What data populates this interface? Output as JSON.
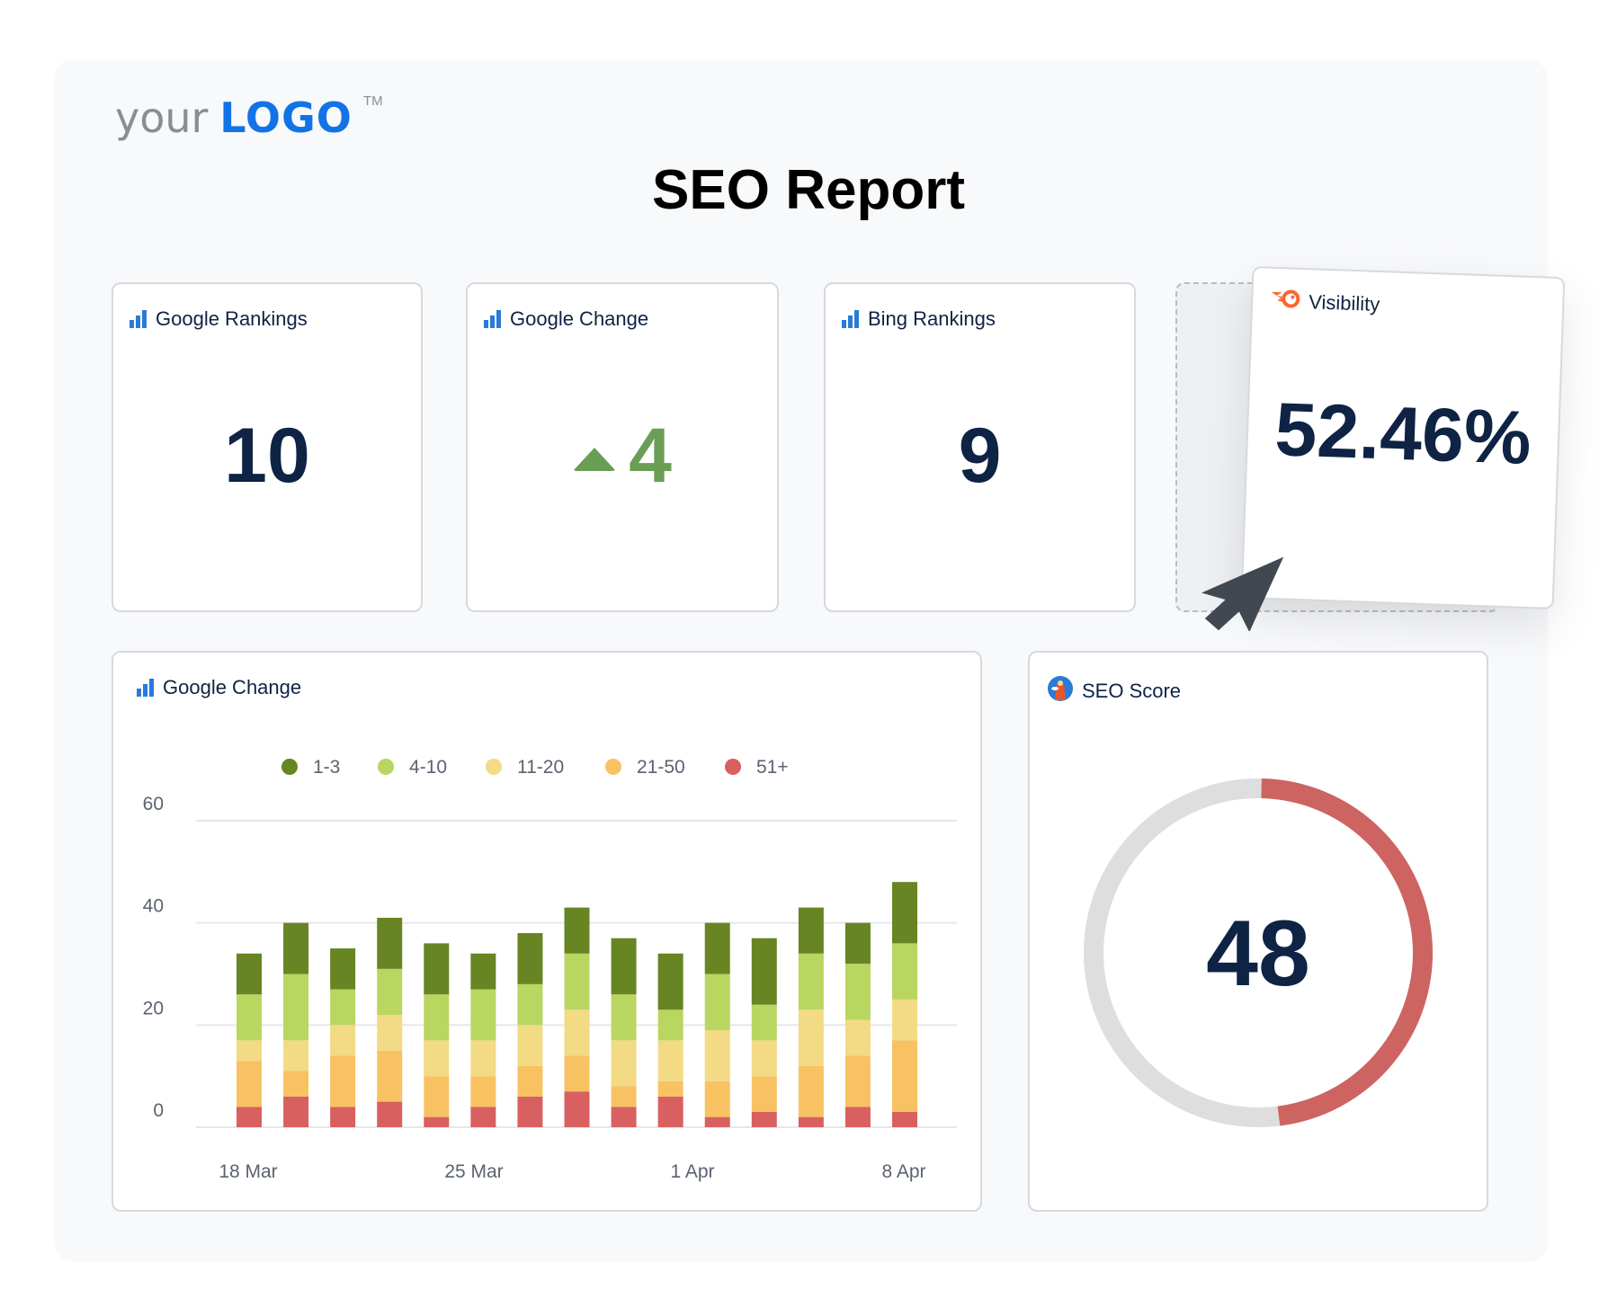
{
  "logo": {
    "prefix": "your",
    "mark": "LOGO",
    "tm": "TM"
  },
  "title": "SEO Report",
  "cards": [
    {
      "label": "Google Rankings",
      "value": "10",
      "icon": "bar-chart-icon"
    },
    {
      "label": "Google Change",
      "value": "4",
      "direction": "up",
      "icon": "bar-chart-icon",
      "color": "#6a9e54"
    },
    {
      "label": "Bing Rankings",
      "value": "9",
      "icon": "bar-chart-icon"
    },
    {
      "label": "Visibility",
      "value": "52.46%",
      "icon": "semrush-icon",
      "accent": "#ff642d"
    }
  ],
  "chart_panel": {
    "label": "Google Change",
    "icon": "bar-chart-icon"
  },
  "chart_data": {
    "type": "bar",
    "stacked": true,
    "title": "",
    "xlabel": "",
    "ylabel": "",
    "ylim": [
      0,
      60
    ],
    "yticks": [
      0,
      20,
      40,
      60
    ],
    "xtick_labels": [
      "18 Mar",
      "25 Mar",
      "1 Apr",
      "8 Apr"
    ],
    "grid": true,
    "legend": "top",
    "series": [
      {
        "name": "51+",
        "color": "#d96060",
        "values": [
          4,
          6,
          4,
          5,
          2,
          4,
          6,
          7,
          4,
          6,
          2,
          3,
          2,
          4,
          3
        ]
      },
      {
        "name": "21-50",
        "color": "#f8c263",
        "values": [
          9,
          5,
          10,
          10,
          8,
          6,
          6,
          7,
          4,
          3,
          7,
          7,
          10,
          10,
          14
        ]
      },
      {
        "name": "11-20",
        "color": "#f3da84",
        "values": [
          4,
          6,
          6,
          7,
          7,
          7,
          8,
          9,
          9,
          8,
          10,
          7,
          11,
          7,
          8
        ]
      },
      {
        "name": "4-10",
        "color": "#b8d660",
        "values": [
          9,
          13,
          7,
          9,
          9,
          10,
          8,
          11,
          9,
          6,
          11,
          7,
          11,
          11,
          11
        ]
      },
      {
        "name": "1-3",
        "color": "#678523",
        "values": [
          8,
          10,
          8,
          10,
          10,
          7,
          10,
          9,
          11,
          11,
          10,
          13,
          9,
          8,
          12
        ]
      }
    ],
    "legend_order": [
      "1-3",
      "4-10",
      "11-20",
      "21-50",
      "51+"
    ]
  },
  "seo_score": {
    "label": "SEO Score",
    "value": "48",
    "percent": 48,
    "icon": "lighthouse-icon",
    "color": "#cd6461",
    "track_color": "#dedede"
  },
  "cursor": {
    "icon": "mouse-pointer-icon"
  }
}
